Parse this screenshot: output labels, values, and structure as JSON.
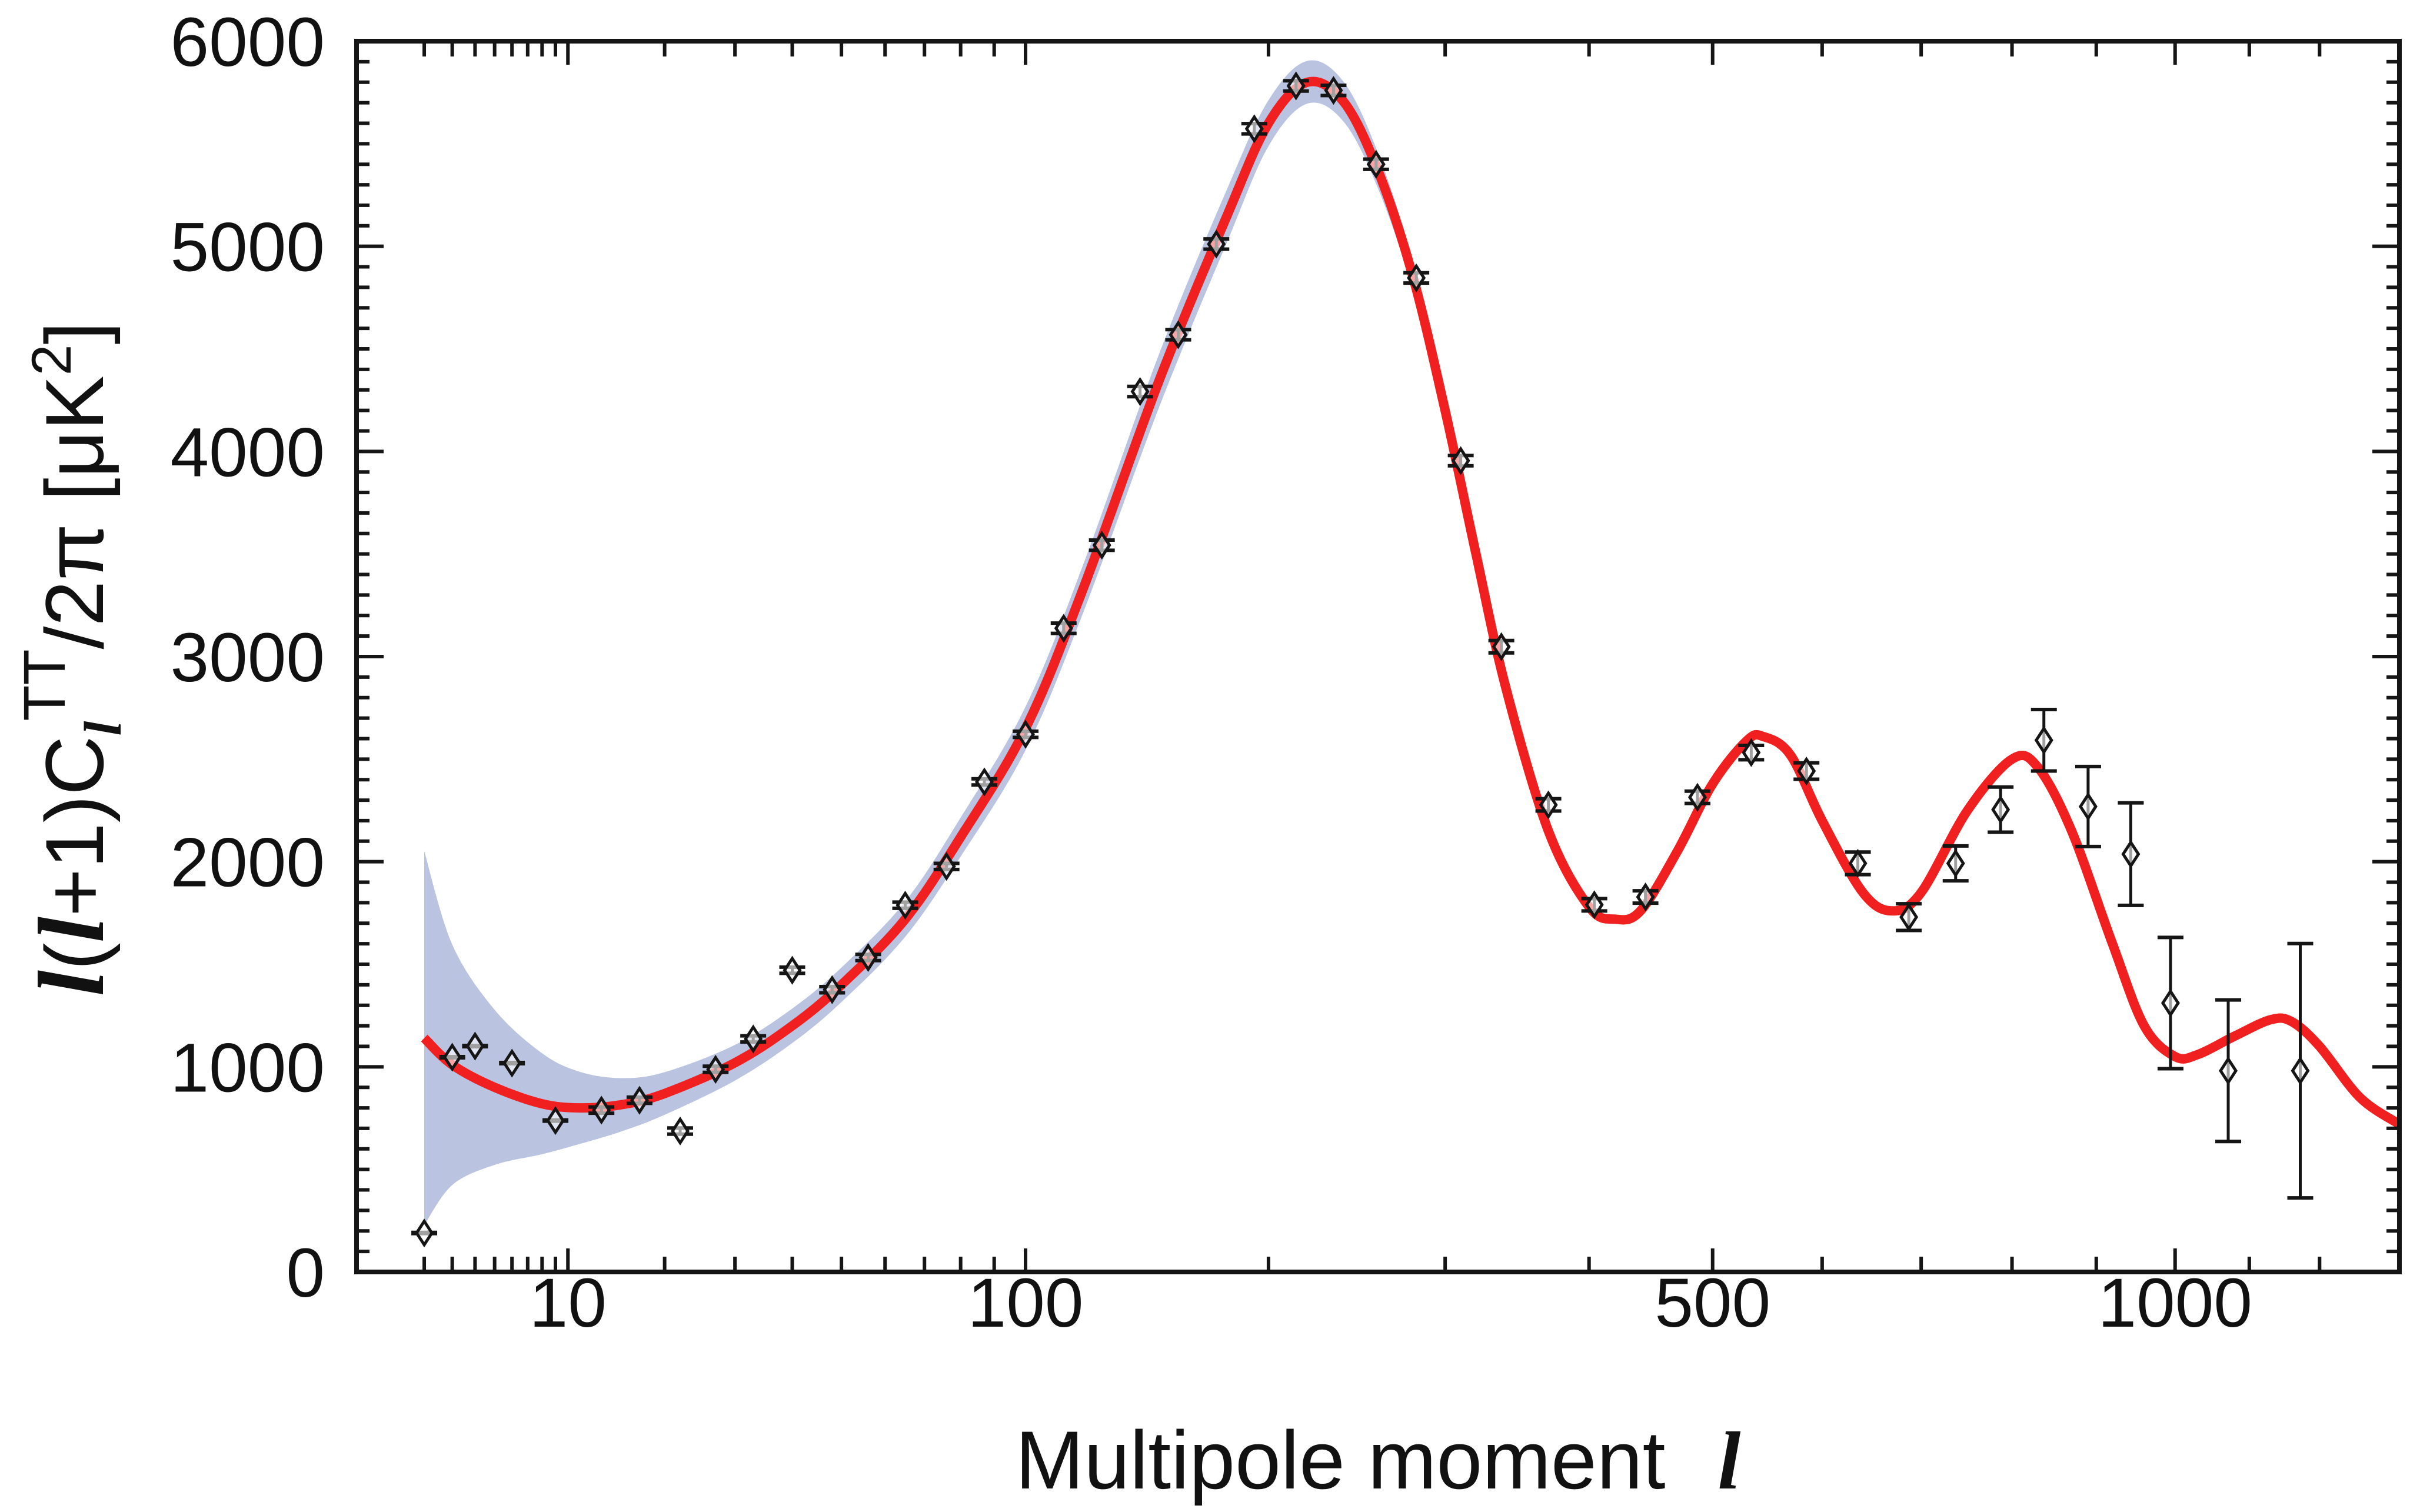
{
  "chart_data": {
    "type": "scatter",
    "xlabel": {
      "text": "Multipole moment",
      "symbol": "l"
    },
    "ylabel": {
      "l1": "l",
      "open": "(",
      "l2": "l",
      "mid": "+1)C",
      "sub": "l",
      "sup": "TT",
      "tail": "/2π [μK",
      "sup2": "2",
      "close": "]"
    },
    "x_scale": "power 0.4",
    "xlim": [
      0.5,
      1320
    ],
    "ylim": [
      0,
      6000
    ],
    "x_ticks": [
      10,
      100,
      500,
      1000
    ],
    "x_tick_labels": [
      "10",
      "100",
      "500",
      "1000"
    ],
    "x_minor_ticks": [
      2,
      3,
      4,
      5,
      6,
      7,
      8,
      9,
      20,
      30,
      40,
      50,
      60,
      70,
      80,
      90,
      200,
      300,
      400,
      600,
      700,
      800,
      900,
      1100,
      1200
    ],
    "y_ticks": [
      0,
      1000,
      2000,
      3000,
      4000,
      5000,
      6000
    ],
    "y_tick_labels": [
      "0",
      "1000",
      "2000",
      "3000",
      "4000",
      "5000",
      "6000"
    ],
    "y_minor_step": 100,
    "grid": false,
    "colors": {
      "model": "#f02020",
      "band": "#bac3e0",
      "points": "#151515",
      "axes": "#151515"
    },
    "points": {
      "l": [
        2,
        3,
        4,
        6,
        9,
        13,
        17,
        22,
        27,
        33,
        40,
        48,
        56,
        65,
        76,
        87,
        100,
        113,
        127,
        142,
        158,
        175,
        193,
        214,
        234,
        258,
        282,
        310,
        337,
        370,
        404,
        444,
        487,
        534,
        585,
        635,
        687,
        737,
        787,
        837,
        890,
        943,
        994,
        1071,
        1172
      ],
      "value": [
        190,
        1047,
        1101,
        1018,
        738,
        789,
        837,
        687,
        988,
        1136,
        1471,
        1376,
        1533,
        1788,
        1977,
        2389,
        2621,
        3138,
        3543,
        4292,
        4569,
        5011,
        5573,
        5782,
        5760,
        5400,
        4846,
        3955,
        3048,
        2277,
        1790,
        1828,
        2314,
        2532,
        2442,
        1992,
        1730,
        1992,
        2254,
        2592,
        2269,
        2037,
        1311,
        981,
        981
      ],
      "error": [
        0,
        0,
        0,
        0,
        0,
        15,
        15,
        15,
        15,
        15,
        15,
        15,
        15,
        15,
        15,
        15,
        15,
        25,
        25,
        25,
        25,
        25,
        25,
        25,
        25,
        25,
        25,
        25,
        30,
        30,
        30,
        30,
        30,
        35,
        40,
        55,
        65,
        85,
        110,
        150,
        195,
        250,
        320,
        345,
        620
      ]
    },
    "model": {
      "l": [
        2,
        3,
        5,
        8,
        11,
        15,
        20,
        30,
        40,
        50,
        65,
        80,
        100,
        120,
        150,
        180,
        200,
        220,
        240,
        260,
        280,
        300,
        320,
        340,
        370,
        400,
        420,
        440,
        470,
        500,
        530,
        545,
        570,
        600,
        640,
        670,
        700,
        750,
        800,
        830,
        870,
        920,
        960,
        1000,
        1030,
        1080,
        1130,
        1160,
        1200,
        1260,
        1320
      ],
      "value": [
        1140,
        1010,
        900,
        820,
        800,
        815,
        870,
        1020,
        1200,
        1400,
        1720,
        2120,
        2650,
        3330,
        4350,
        5150,
        5600,
        5800,
        5700,
        5350,
        4850,
        4200,
        3500,
        2850,
        2150,
        1780,
        1720,
        1760,
        2050,
        2380,
        2590,
        2610,
        2520,
        2200,
        1850,
        1760,
        1850,
        2250,
        2500,
        2460,
        2150,
        1600,
        1200,
        1050,
        1060,
        1150,
        1230,
        1220,
        1100,
        850,
        720
      ]
    },
    "band": {
      "l": [
        2,
        3,
        5,
        8,
        11,
        15,
        20,
        30,
        40,
        50,
        65,
        80,
        100,
        120,
        150,
        180,
        200,
        220,
        240,
        260,
        280,
        300,
        320,
        340,
        370,
        400
      ],
      "lower": [
        228,
        424,
        522,
        574,
        624,
        685,
        766,
        933,
        1116,
        1316,
        1634,
        2025,
        2544,
        3213,
        4220,
        5021,
        5488,
        5696,
        5603,
        5264,
        4777,
        4137,
        3458,
        2816,
        2124,
        1759
      ],
      "upper": [
        2052,
        1596,
        1278,
        1066,
        976,
        945,
        974,
        1107,
        1284,
        1484,
        1806,
        2215,
        2756,
        3447,
        4480,
        5279,
        5712,
        5904,
        5797,
        5436,
        4923,
        4263,
        3542,
        2884,
        2176,
        1801
      ]
    }
  }
}
